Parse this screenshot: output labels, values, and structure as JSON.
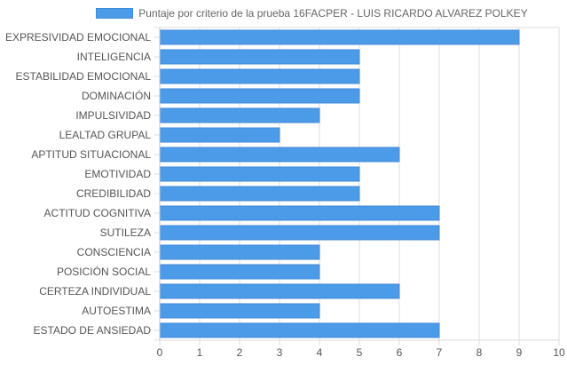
{
  "chart_data": {
    "type": "bar",
    "orientation": "horizontal",
    "series": [
      {
        "name": "Puntaje por criterio de la prueba 16FACPER - LUIS RICARDO ALVAREZ POLKEY",
        "values": [
          9,
          5,
          5,
          5,
          4,
          3,
          6,
          5,
          5,
          7,
          7,
          4,
          4,
          6,
          4,
          7
        ]
      }
    ],
    "categories": [
      "EXPRESIVIDAD EMOCIONAL",
      "INTELIGENCIA",
      "ESTABILIDAD EMOCIONAL",
      "DOMINACIÓN",
      "IMPULSIVIDAD",
      "LEALTAD GRUPAL",
      "APTITUD SITUACIONAL",
      "EMOTIVIDAD",
      "CREDIBILIDAD",
      "ACTITUD COGNITIVA",
      "SUTILEZA",
      "CONSCIENCIA",
      "POSICIÓN SOCIAL",
      "CERTEZA INDIVIDUAL",
      "AUTOESTIMA",
      "ESTADO DE ANSIEDAD"
    ],
    "xticks": [
      "0",
      "1",
      "2",
      "3",
      "4",
      "5",
      "6",
      "7",
      "8",
      "9",
      "10"
    ],
    "xlim": [
      0,
      10
    ],
    "grid": true,
    "legend": "top-center",
    "bar_fill": "#4c9be8",
    "bar_stroke": "#3f8ad8",
    "grid_color": "#dcdcdc"
  }
}
